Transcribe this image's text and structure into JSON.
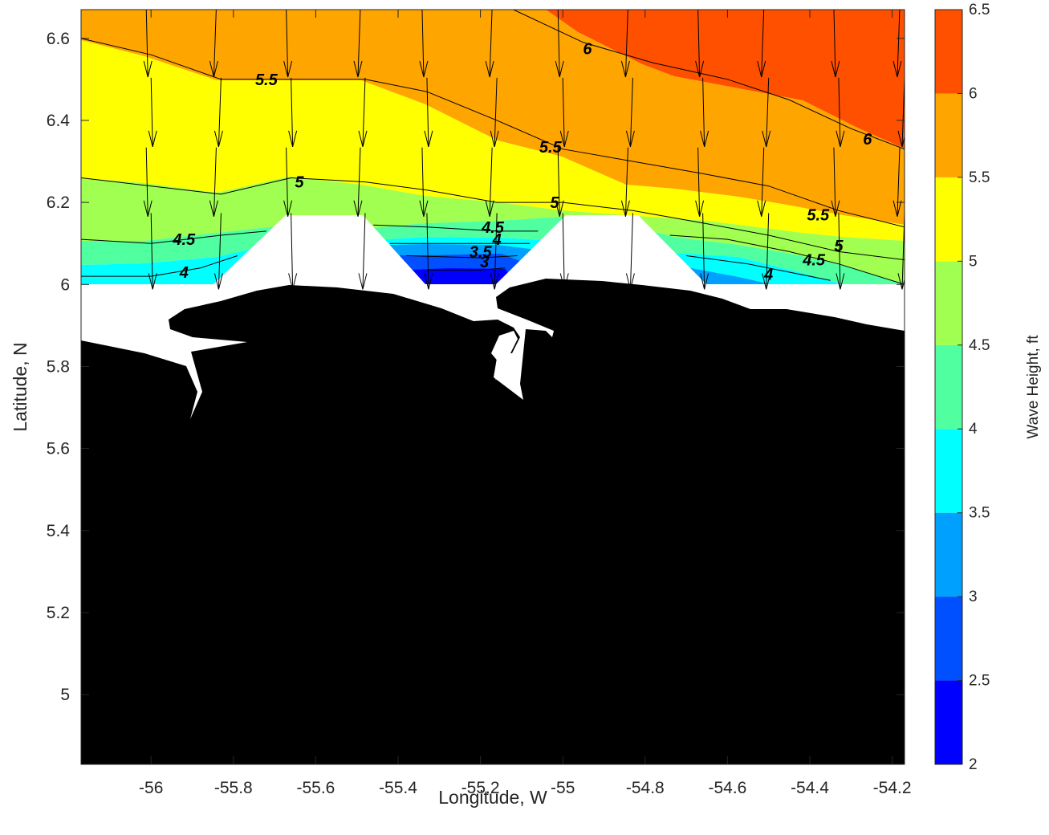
{
  "chart_data": {
    "type": "contour",
    "title": "",
    "xlabel": "Longitude, W",
    "ylabel": "Latitude, N",
    "xlim": [
      -56.17,
      -54.17
    ],
    "ylim": [
      4.83,
      6.67
    ],
    "x_ticks": [
      -56,
      -55.8,
      -55.6,
      -55.4,
      -55.2,
      -55,
      -54.8,
      -54.6,
      -54.4,
      -54.2
    ],
    "y_ticks": [
      5,
      5.2,
      5.4,
      5.6,
      5.8,
      6,
      6.2,
      6.4,
      6.6
    ],
    "colorbar": {
      "label": "Wave Height, ft",
      "range": [
        2,
        6.5
      ],
      "ticks": [
        2,
        2.5,
        3,
        3.5,
        4,
        4.5,
        5,
        5.5,
        6,
        6.5
      ],
      "colors": [
        "#0000ff",
        "#0050ff",
        "#00a0ff",
        "#00ffff",
        "#50ffa0",
        "#a0ff50",
        "#ffff00",
        "#ffa500",
        "#ff5000"
      ]
    },
    "land_color": "#000000",
    "contour_lines": [
      {
        "level": 6,
        "points": [
          [
            -55.12,
            6.67
          ],
          [
            -54.95,
            6.59
          ],
          [
            -54.78,
            6.54
          ],
          [
            -54.6,
            6.5
          ],
          [
            -54.45,
            6.45
          ],
          [
            -54.3,
            6.38
          ],
          [
            -54.17,
            6.33
          ]
        ]
      },
      {
        "level": 5.5,
        "points": [
          [
            -56.17,
            6.6
          ],
          [
            -56.0,
            6.56
          ],
          [
            -55.83,
            6.5
          ],
          [
            -55.66,
            6.5
          ],
          [
            -55.48,
            6.5
          ],
          [
            -55.33,
            6.47
          ],
          [
            -55.16,
            6.4
          ],
          [
            -55.0,
            6.33
          ],
          [
            -54.83,
            6.3
          ],
          [
            -54.66,
            6.27
          ],
          [
            -54.5,
            6.24
          ],
          [
            -54.33,
            6.18
          ],
          [
            -54.17,
            6.14
          ]
        ]
      },
      {
        "level": 5,
        "points": [
          [
            -56.17,
            6.26
          ],
          [
            -56.0,
            6.24
          ],
          [
            -55.83,
            6.22
          ],
          [
            -55.66,
            6.26
          ],
          [
            -55.48,
            6.25
          ],
          [
            -55.33,
            6.23
          ],
          [
            -55.16,
            6.2
          ],
          [
            -55.0,
            6.2
          ],
          [
            -54.83,
            6.18
          ],
          [
            -54.66,
            6.15
          ],
          [
            -54.5,
            6.12
          ],
          [
            -54.33,
            6.08
          ],
          [
            -54.17,
            6.06
          ]
        ]
      },
      {
        "level": 4.5,
        "points": [
          [
            -56.17,
            6.11
          ],
          [
            -56.0,
            6.1
          ],
          [
            -55.83,
            6.12
          ],
          [
            -55.72,
            6.13
          ]
        ]
      },
      {
        "level": 4.5,
        "points": [
          [
            -55.46,
            6.145
          ],
          [
            -55.33,
            6.14
          ],
          [
            -55.16,
            6.13
          ],
          [
            -55.06,
            6.13
          ]
        ]
      },
      {
        "level": 4.5,
        "points": [
          [
            -54.74,
            6.12
          ],
          [
            -54.6,
            6.11
          ],
          [
            -54.45,
            6.08
          ],
          [
            -54.33,
            6.05
          ],
          [
            -54.17,
            6.0
          ]
        ]
      },
      {
        "level": 4,
        "points": [
          [
            -56.17,
            6.02
          ],
          [
            -56.0,
            6.02
          ],
          [
            -55.88,
            6.04
          ],
          [
            -55.79,
            6.07
          ]
        ]
      },
      {
        "level": 4,
        "points": [
          [
            -55.42,
            6.1
          ],
          [
            -55.3,
            6.1
          ],
          [
            -55.16,
            6.1
          ],
          [
            -55.08,
            6.1
          ]
        ]
      },
      {
        "level": 4,
        "points": [
          [
            -54.7,
            6.07
          ],
          [
            -54.55,
            6.05
          ],
          [
            -54.45,
            6.03
          ],
          [
            -54.35,
            6.01
          ]
        ]
      },
      {
        "level": 3.5,
        "points": [
          [
            -55.38,
            6.07
          ],
          [
            -55.2,
            6.065
          ],
          [
            -55.11,
            6.07
          ]
        ]
      },
      {
        "level": 3,
        "points": [
          [
            -55.33,
            6.035
          ],
          [
            -55.2,
            6.035
          ],
          [
            -55.14,
            6.04
          ]
        ]
      }
    ],
    "contour_labels": [
      {
        "text": "6",
        "x": -54.94,
        "y": 6.575
      },
      {
        "text": "6",
        "x": -54.26,
        "y": 6.355
      },
      {
        "text": "5.5",
        "x": -55.72,
        "y": 6.5
      },
      {
        "text": "5.5",
        "x": -55.03,
        "y": 6.335
      },
      {
        "text": "5.5",
        "x": -54.38,
        "y": 6.17
      },
      {
        "text": "5",
        "x": -55.64,
        "y": 6.25
      },
      {
        "text": "5",
        "x": -55.02,
        "y": 6.2
      },
      {
        "text": "5",
        "x": -54.33,
        "y": 6.095
      },
      {
        "text": "4.5",
        "x": -55.92,
        "y": 6.11
      },
      {
        "text": "4.5",
        "x": -55.17,
        "y": 6.14
      },
      {
        "text": "4.5",
        "x": -54.39,
        "y": 6.06
      },
      {
        "text": "4",
        "x": -55.92,
        "y": 6.03
      },
      {
        "text": "4",
        "x": -55.16,
        "y": 6.11
      },
      {
        "text": "4",
        "x": -54.5,
        "y": 6.025
      },
      {
        "text": "3.5",
        "x": -55.2,
        "y": 6.08
      },
      {
        "text": "3",
        "x": -55.19,
        "y": 6.055
      }
    ],
    "wave_direction": "southward"
  }
}
